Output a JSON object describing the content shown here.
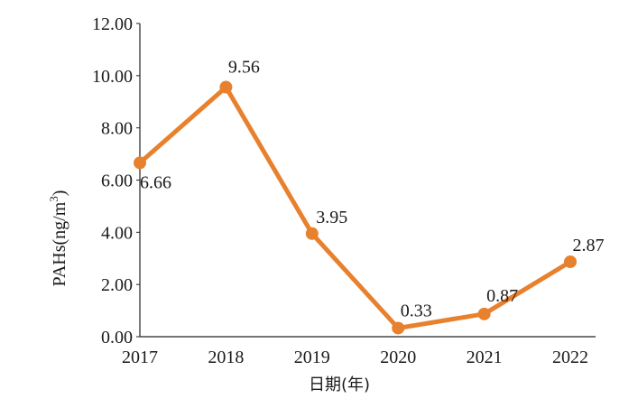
{
  "chart_data": {
    "type": "line",
    "categories": [
      "2017",
      "2018",
      "2019",
      "2020",
      "2021",
      "2022"
    ],
    "values": [
      6.66,
      9.56,
      3.95,
      0.33,
      0.87,
      2.87
    ],
    "data_labels": [
      "6.66",
      "9.56",
      "3.95",
      "0.33",
      "0.87",
      "2.87"
    ],
    "xlabel": "日期(年)",
    "ylabel_main": "PAHs(ng/m",
    "ylabel_sup": "3",
    "ylabel_close": ")",
    "ylim": [
      0,
      12
    ],
    "yticks": [
      "0.00",
      "2.00",
      "4.00",
      "6.00",
      "8.00",
      "10.00",
      "12.00"
    ],
    "grid": false,
    "legend": "none",
    "color": "#E8812E"
  }
}
